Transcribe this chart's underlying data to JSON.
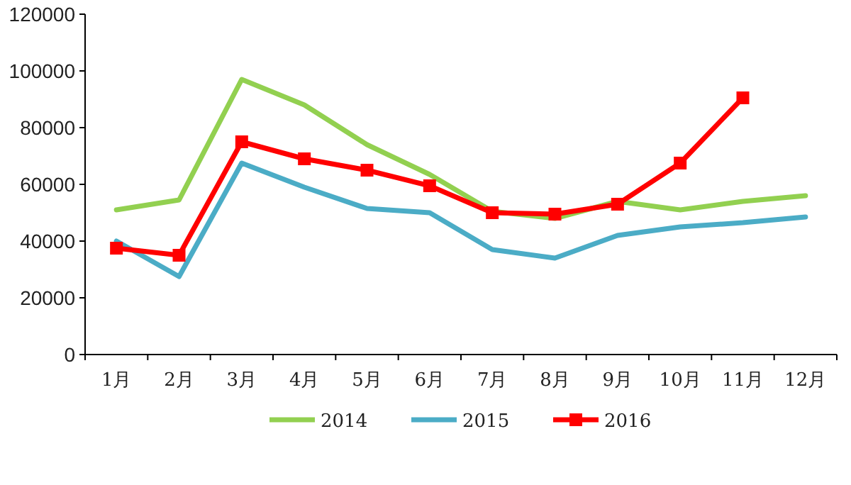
{
  "chart_data": {
    "type": "line",
    "categories": [
      "1月",
      "2月",
      "3月",
      "4月",
      "5月",
      "6月",
      "7月",
      "8月",
      "9月",
      "10月",
      "11月",
      "12月"
    ],
    "series": [
      {
        "name": "2014",
        "color": "#92d050",
        "marker": "none",
        "values": [
          51000,
          54500,
          97000,
          88000,
          74000,
          63500,
          50500,
          48000,
          54000,
          51000,
          54000,
          56000
        ]
      },
      {
        "name": "2015",
        "color": "#4bacc6",
        "marker": "none",
        "values": [
          40000,
          27500,
          67500,
          59000,
          51500,
          50000,
          37000,
          34000,
          42000,
          45000,
          46500,
          48500
        ]
      },
      {
        "name": "2016",
        "color": "#ff0000",
        "marker": "square",
        "values": [
          37500,
          35000,
          75000,
          69000,
          65000,
          59500,
          50000,
          49500,
          53000,
          67500,
          90500,
          null
        ]
      }
    ],
    "ylim": [
      0,
      120000
    ],
    "yticks": [
      0,
      20000,
      40000,
      60000,
      80000,
      100000,
      120000
    ],
    "grid": false,
    "legend": "bottom"
  }
}
